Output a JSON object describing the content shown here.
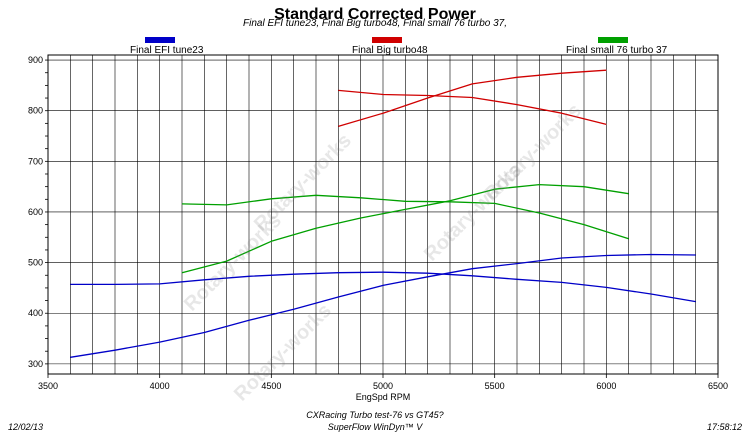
{
  "chart_data": {
    "type": "line",
    "title": "Standard Corrected Power",
    "subtitle": "Final EFI tune23, Final Big turbo48, Final small 76 turbo 37,",
    "xlabel": "EngSpd RPM",
    "ylabel": "",
    "xlim": [
      3500,
      6500
    ],
    "ylim": [
      280,
      910
    ],
    "xticks": [
      3500,
      4000,
      4500,
      5000,
      5500,
      6000,
      6500
    ],
    "yticks": [
      300,
      400,
      500,
      600,
      700,
      800,
      900
    ],
    "x_minor_step": 100,
    "y_minor_step": 25,
    "grid": true,
    "legend_position": "top",
    "series": [
      {
        "name": "Final EFI tune23",
        "color": "#0000c8",
        "lines": [
          {
            "x": [
              3600,
              3800,
              4000,
              4200,
              4400,
              4600,
              4800,
              5000,
              5200,
              5400,
              5600,
              5800,
              6000,
              6200,
              6400
            ],
            "y": [
              457,
              457,
              458,
              466,
              473,
              477,
              480,
              481,
              479,
              474,
              467,
              461,
              451,
              438,
              423
            ]
          },
          {
            "x": [
              3600,
              3800,
              4000,
              4200,
              4400,
              4600,
              4800,
              5000,
              5200,
              5400,
              5600,
              5800,
              6000,
              6200,
              6400
            ],
            "y": [
              313,
              327,
              343,
              362,
              386,
              408,
              432,
              455,
              472,
              488,
              498,
              509,
              514,
              516,
              515
            ]
          }
        ]
      },
      {
        "name": "Final Big turbo48",
        "color": "#d00000",
        "lines": [
          {
            "x": [
              4800,
              5000,
              5200,
              5400,
              5600,
              5800,
              6000
            ],
            "y": [
              840,
              832,
              830,
              826,
              812,
              795,
              773
            ]
          },
          {
            "x": [
              4800,
              5000,
              5200,
              5400,
              5600,
              5800,
              6000
            ],
            "y": [
              769,
              795,
              825,
              853,
              866,
              874,
              880
            ]
          }
        ]
      },
      {
        "name": "Final small 76 turbo 37",
        "color": "#00a000",
        "lines": [
          {
            "x": [
              4100,
              4300,
              4500,
              4700,
              4900,
              5100,
              5300,
              5500,
              5700,
              5900,
              6100
            ],
            "y": [
              616,
              614,
              626,
              633,
              628,
              621,
              620,
              617,
              598,
              575,
              547
            ]
          },
          {
            "x": [
              4100,
              4300,
              4500,
              4700,
              4900,
              5100,
              5300,
              5500,
              5700,
              5900,
              6100
            ],
            "y": [
              480,
              503,
              542,
              568,
              588,
              605,
              622,
              645,
              654,
              650,
              636
            ]
          }
        ]
      }
    ]
  },
  "footer": {
    "date": "12/02/13",
    "time": "17:58:12",
    "test_name": "CXRacing Turbo test-76 vs GT45?",
    "software": "SuperFlow WinDyn™ V"
  },
  "watermark": "Rotary-works"
}
